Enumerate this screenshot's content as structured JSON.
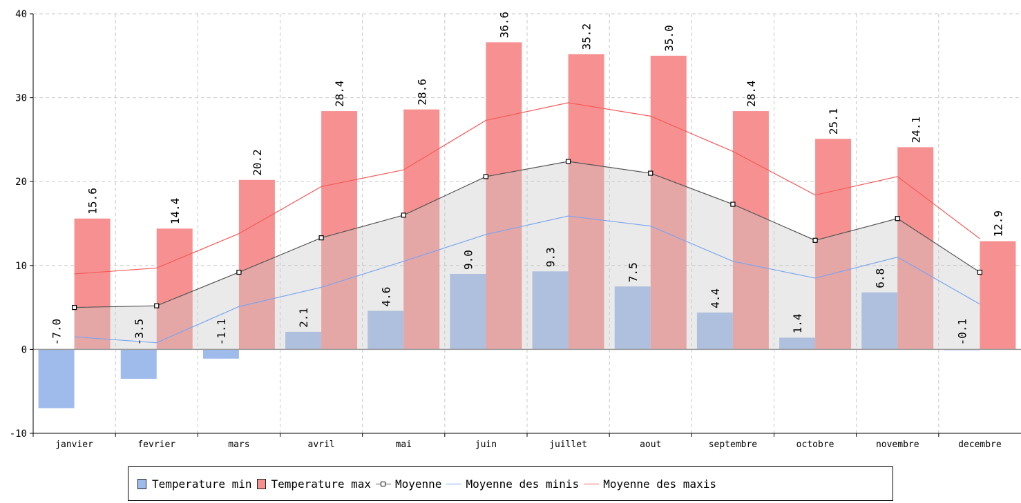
{
  "chart_data": {
    "type": "bar",
    "title": "",
    "xlabel": "",
    "ylabel": "",
    "ylim": [
      -10,
      40
    ],
    "yticks": [
      "40",
      "30",
      "20",
      "10",
      "0",
      "-10"
    ],
    "grid": true,
    "legend_position": "bottom",
    "categories": [
      "janvier",
      "fevrier",
      "mars",
      "avril",
      "mai",
      "juin",
      "juillet",
      "aout",
      "septembre",
      "octobre",
      "novembre",
      "decembre"
    ],
    "series": [
      {
        "name": "Temperature min",
        "kind": "bar",
        "color": "#9ebbeb",
        "values": [
          -7.0,
          -3.5,
          -1.1,
          2.1,
          4.6,
          9.0,
          9.3,
          7.5,
          4.4,
          1.4,
          6.8,
          -0.1
        ],
        "labels": [
          "-7.0",
          "-3.5",
          "-1.1",
          "2.1",
          "4.6",
          "9.0",
          "9.3",
          "7.5",
          "4.4",
          "1.4",
          "6.8",
          "-0.1"
        ]
      },
      {
        "name": "Temperature max",
        "kind": "bar",
        "color": "#f79191",
        "values": [
          15.6,
          14.4,
          20.2,
          28.4,
          28.6,
          36.6,
          35.2,
          35.0,
          28.4,
          25.1,
          24.1,
          12.9
        ],
        "labels": [
          "15.6",
          "14.4",
          "20.2",
          "28.4",
          "28.6",
          "36.6",
          "35.2",
          "35.0",
          "28.4",
          "25.1",
          "24.1",
          "12.9"
        ]
      },
      {
        "name": "Moyenne",
        "kind": "line-area",
        "color": "#555555",
        "values": [
          5.0,
          5.2,
          9.2,
          13.3,
          16.0,
          20.6,
          22.4,
          21.0,
          17.3,
          13.0,
          15.6,
          9.2
        ]
      },
      {
        "name": "Moyenne des minis",
        "kind": "line",
        "color": "#7aa5f0",
        "values": [
          1.5,
          0.8,
          5.1,
          7.4,
          10.5,
          13.7,
          15.9,
          14.7,
          10.5,
          8.5,
          11.0,
          5.4
        ]
      },
      {
        "name": "Moyenne des maxis",
        "kind": "line",
        "color": "#f55a5a",
        "values": [
          9.0,
          9.7,
          13.8,
          19.4,
          21.4,
          27.3,
          29.4,
          27.8,
          23.6,
          18.4,
          20.6,
          13.2
        ]
      }
    ]
  }
}
